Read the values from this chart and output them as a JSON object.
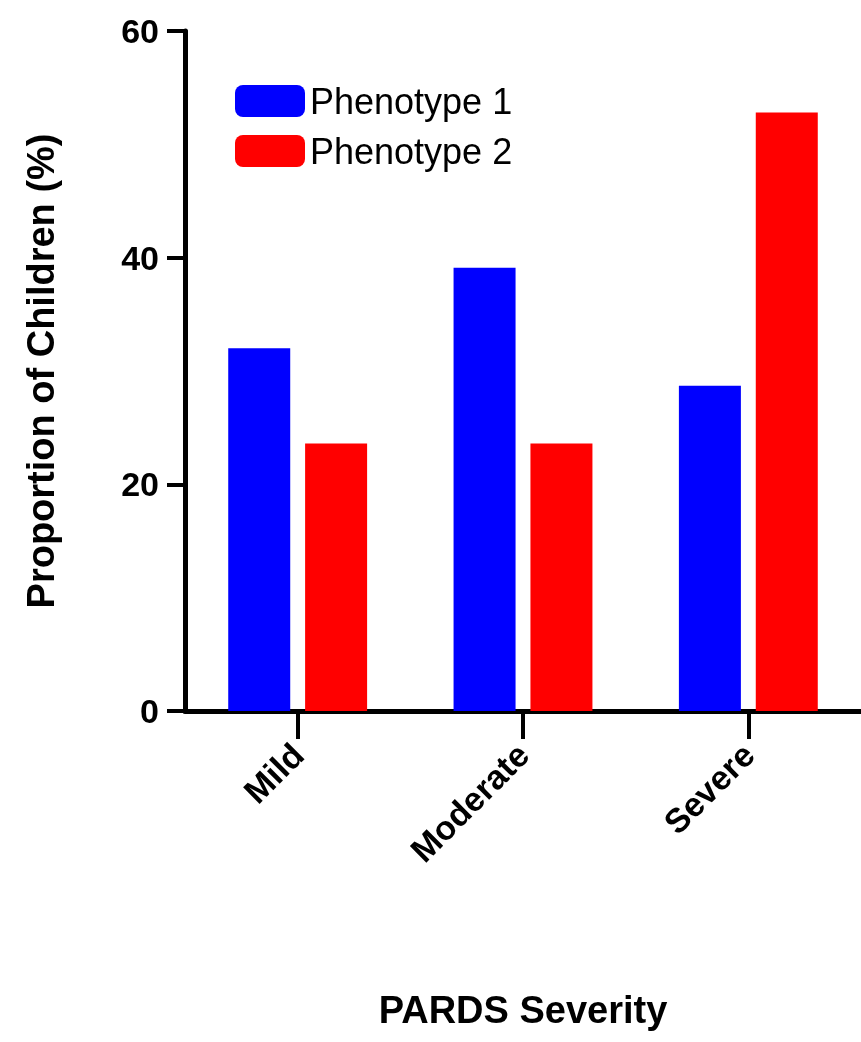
{
  "chart_data": {
    "type": "bar",
    "xlabel": "PARDS Severity",
    "ylabel": "Proportion of Children (%)",
    "categories": [
      "Mild",
      "Moderate",
      "Severe"
    ],
    "series": [
      {
        "name": "Phenotype 1",
        "color": "#0000ff",
        "values": [
          32.0,
          39.1,
          28.7
        ]
      },
      {
        "name": "Phenotype 2",
        "color": "#ff0000",
        "values": [
          23.6,
          23.6,
          52.8
        ]
      }
    ],
    "ylim": [
      0,
      60
    ],
    "yticks": [
      0,
      20,
      40,
      60
    ],
    "grid": false,
    "legend": "top left"
  }
}
